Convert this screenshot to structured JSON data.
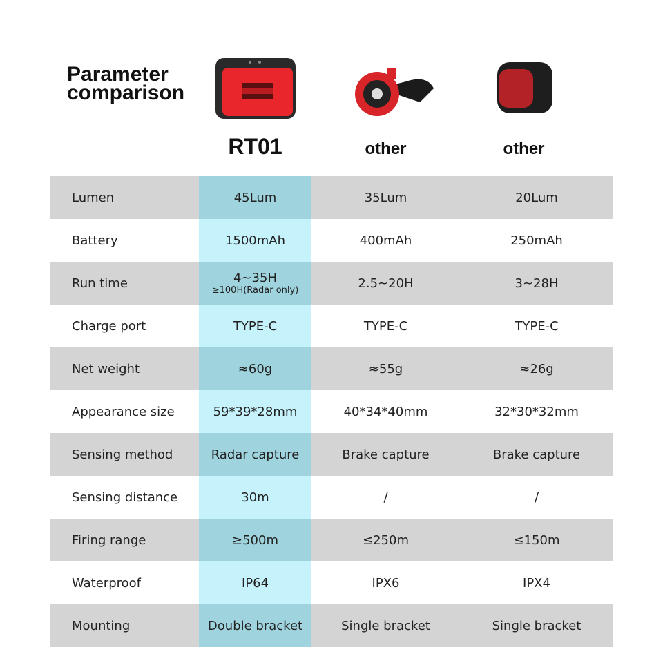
{
  "title_line1": "Parameter",
  "title_line2": "comparison",
  "columns": [
    "RT01",
    "other",
    "other"
  ],
  "colors": {
    "highlight": "#c6f2fb",
    "highlight_gray": "#9fd4df",
    "row_gray": "#d4d4d4",
    "product_red": "#e8262b"
  },
  "rows": [
    {
      "label": "Lumen",
      "values": [
        "45Lum",
        "35Lum",
        "20Lum"
      ]
    },
    {
      "label": "Battery",
      "values": [
        "1500mAh",
        "400mAh",
        "250mAh"
      ]
    },
    {
      "label": "Run time",
      "values": [
        "4~35H",
        "2.5~20H",
        "3~28H"
      ],
      "note": "≥100H(Radar only)"
    },
    {
      "label": "Charge port",
      "values": [
        "TYPE-C",
        "TYPE-C",
        "TYPE-C"
      ]
    },
    {
      "label": "Net weight",
      "values": [
        "≈60g",
        "≈55g",
        "≈26g"
      ]
    },
    {
      "label": "Appearance size",
      "values": [
        "59*39*28mm",
        "40*34*40mm",
        "32*30*32mm"
      ]
    },
    {
      "label": "Sensing method",
      "values": [
        "Radar capture",
        "Brake capture",
        "Brake capture"
      ]
    },
    {
      "label": "Sensing distance",
      "values": [
        "30m",
        "/",
        "/"
      ]
    },
    {
      "label": "Firing range",
      "values": [
        "≥500m",
        "≤250m",
        "≤150m"
      ]
    },
    {
      "label": "Waterproof",
      "values": [
        "IP64",
        "IPX6",
        "IPX4"
      ]
    },
    {
      "label": "Mounting",
      "values": [
        "Double bracket",
        "Single bracket",
        "Single bracket"
      ]
    }
  ]
}
